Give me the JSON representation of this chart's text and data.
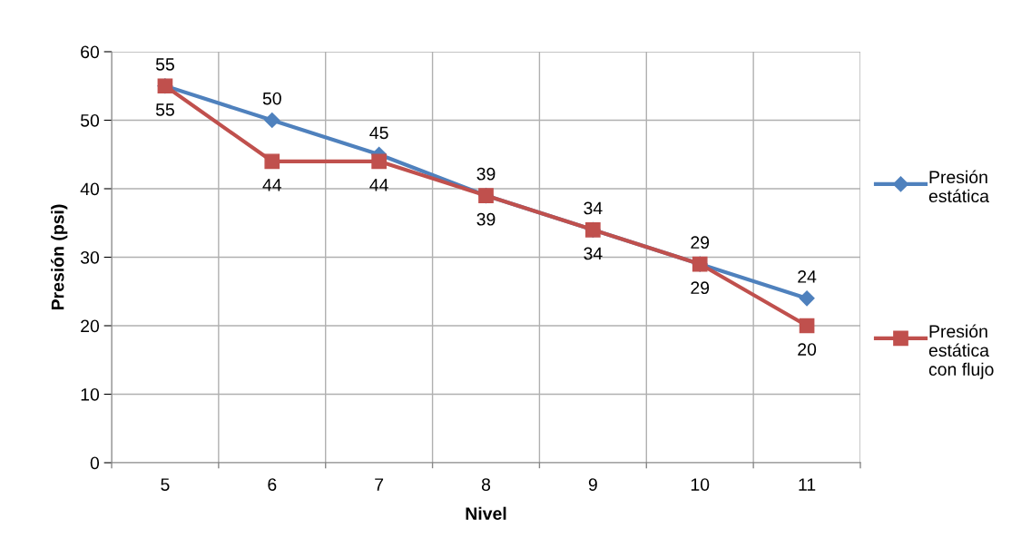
{
  "chart_data": {
    "type": "line",
    "xlabel": "Nivel",
    "ylabel": "Presión (psi)",
    "categories": [
      "5",
      "6",
      "7",
      "8",
      "9",
      "10",
      "11"
    ],
    "series": [
      {
        "name": "Presión estática",
        "color": "#4f81bd",
        "marker": "diamond",
        "values": [
          55,
          50,
          45,
          39,
          34,
          29,
          24
        ]
      },
      {
        "name": "Presión estática con flujo",
        "color": "#c0504d",
        "marker": "square",
        "values": [
          55,
          44,
          44,
          39,
          34,
          29,
          20
        ]
      }
    ],
    "ylim": [
      0,
      60
    ],
    "yticks": [
      0,
      10,
      20,
      30,
      40,
      50,
      60
    ],
    "grid": true,
    "legend": "right",
    "data_labels": true,
    "line_style": "solid"
  }
}
